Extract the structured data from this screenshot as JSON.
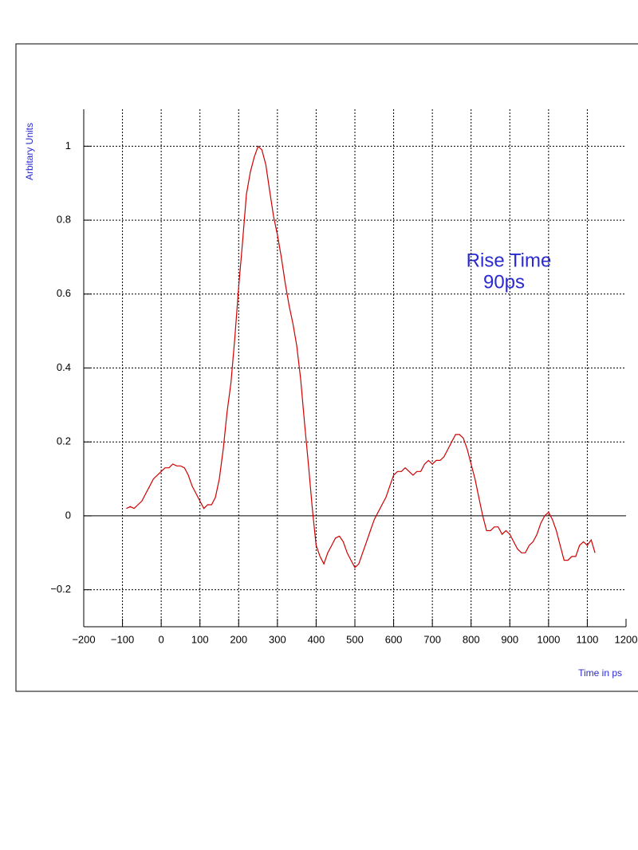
{
  "chart_data": {
    "type": "line",
    "y_label": "Arbitary Units",
    "x_label": "Time in ps",
    "annotation": [
      "Rise Time",
      "90ps"
    ],
    "x": [
      -90,
      -80,
      -70,
      -60,
      -50,
      -40,
      -30,
      -20,
      -10,
      0,
      10,
      20,
      30,
      40,
      50,
      60,
      70,
      80,
      90,
      100,
      110,
      120,
      130,
      140,
      150,
      160,
      170,
      180,
      190,
      200,
      210,
      220,
      230,
      240,
      250,
      260,
      270,
      280,
      290,
      300,
      310,
      320,
      330,
      340,
      350,
      360,
      370,
      380,
      390,
      400,
      410,
      420,
      430,
      440,
      450,
      460,
      470,
      480,
      490,
      500,
      510,
      520,
      530,
      540,
      550,
      560,
      570,
      580,
      590,
      600,
      610,
      620,
      630,
      640,
      650,
      660,
      670,
      680,
      690,
      700,
      710,
      720,
      730,
      740,
      750,
      760,
      770,
      780,
      790,
      800,
      810,
      820,
      830,
      840,
      850,
      860,
      870,
      880,
      890,
      900,
      910,
      920,
      930,
      940,
      950,
      960,
      970,
      980,
      990,
      1000,
      1010,
      1020,
      1030,
      1040,
      1050,
      1060,
      1070,
      1080,
      1090,
      1100,
      1110,
      1120
    ],
    "series": [
      {
        "color": "#d00000",
        "values": [
          0.02,
          0.025,
          0.02,
          0.03,
          0.04,
          0.06,
          0.08,
          0.1,
          0.11,
          0.12,
          0.13,
          0.13,
          0.14,
          0.135,
          0.135,
          0.13,
          0.11,
          0.08,
          0.06,
          0.04,
          0.02,
          0.03,
          0.03,
          0.05,
          0.1,
          0.18,
          0.28,
          0.36,
          0.48,
          0.62,
          0.74,
          0.87,
          0.93,
          0.97,
          1.0,
          0.99,
          0.95,
          0.88,
          0.81,
          0.76,
          0.7,
          0.63,
          0.57,
          0.52,
          0.46,
          0.37,
          0.25,
          0.14,
          0.02,
          -0.08,
          -0.11,
          -0.13,
          -0.1,
          -0.08,
          -0.06,
          -0.055,
          -0.07,
          -0.1,
          -0.12,
          -0.14,
          -0.13,
          -0.1,
          -0.07,
          -0.04,
          -0.01,
          0.01,
          0.03,
          0.05,
          0.08,
          0.11,
          0.12,
          0.12,
          0.13,
          0.12,
          0.11,
          0.12,
          0.12,
          0.14,
          0.15,
          0.14,
          0.15,
          0.15,
          0.16,
          0.18,
          0.2,
          0.22,
          0.22,
          0.21,
          0.18,
          0.14,
          0.1,
          0.05,
          0.0,
          -0.04,
          -0.04,
          -0.03,
          -0.03,
          -0.05,
          -0.04,
          -0.05,
          -0.07,
          -0.09,
          -0.1,
          -0.1,
          -0.08,
          -0.07,
          -0.05,
          -0.02,
          0.0,
          0.01,
          -0.01,
          -0.04,
          -0.08,
          -0.12,
          -0.12,
          -0.11,
          -0.11,
          -0.08,
          -0.07,
          -0.08,
          -0.065,
          -0.1
        ]
      }
    ],
    "xlim": [
      -200,
      1200
    ],
    "xticks": [
      {
        "value": -200,
        "label": "−200"
      },
      {
        "value": -100,
        "label": "−100"
      },
      0,
      100,
      200,
      300,
      400,
      500,
      600,
      700,
      800,
      900,
      1000,
      1100,
      1200
    ],
    "ylim": [
      -0.3,
      1.1
    ],
    "yticks": [
      {
        "value": -0.2,
        "label": "−0.2"
      },
      0,
      0.2,
      0.4,
      0.6,
      0.8,
      1
    ],
    "grid": true
  }
}
